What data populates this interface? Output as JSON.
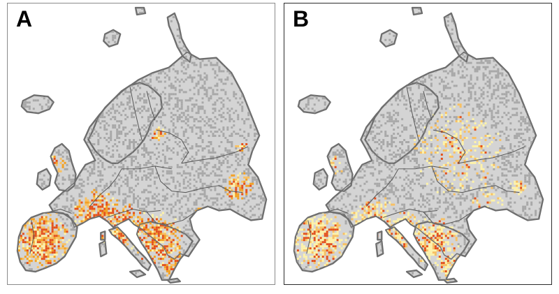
{
  "figure": {
    "panels": [
      {
        "id": "A",
        "label": "A"
      },
      {
        "id": "B",
        "label": "B"
      }
    ]
  },
  "colors": {
    "land": "#d4d4d4",
    "land_outline": "#6e6e6e",
    "border": "#555555",
    "speckle_dark": "#a8a8a8",
    "class_low": "#fff3a8",
    "class_mid": "#f9c060",
    "class_high_a": "#f4a020",
    "class_extreme": "#e4501a"
  }
}
